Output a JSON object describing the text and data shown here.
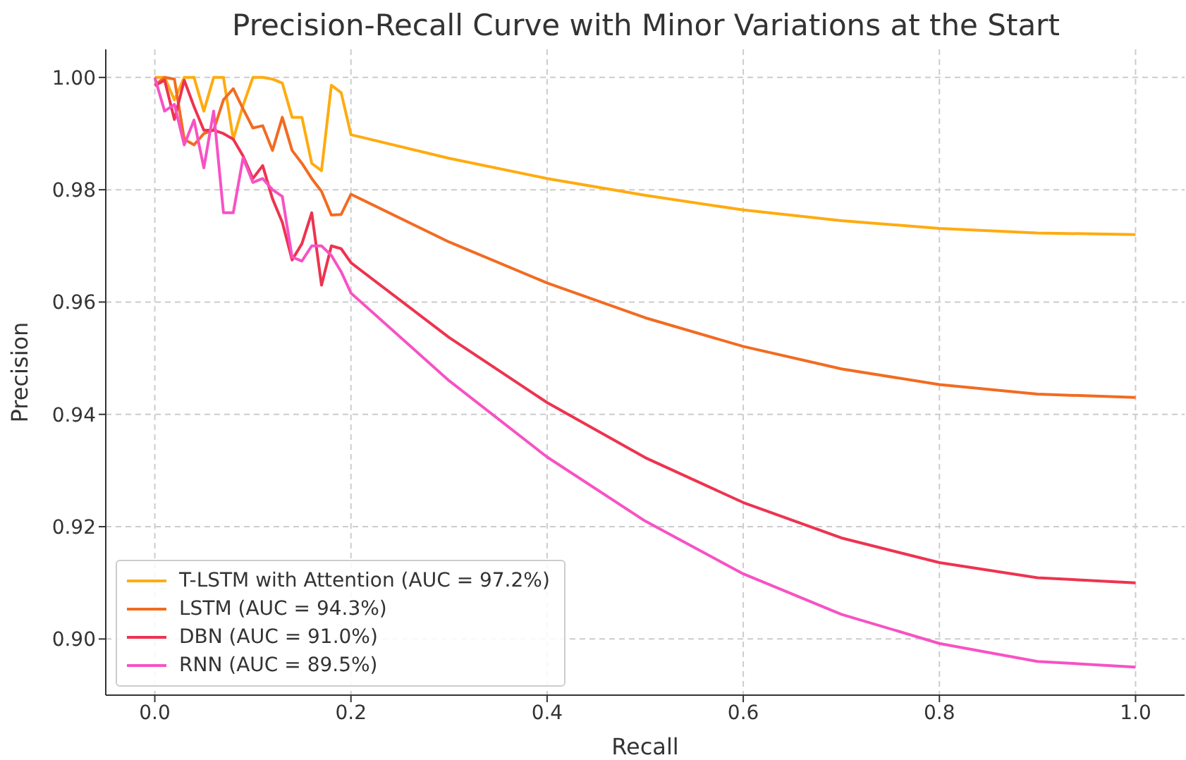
{
  "chart_data": {
    "type": "line",
    "title": "Precision-Recall Curve with Minor Variations at the Start",
    "xlabel": "Recall",
    "ylabel": "Precision",
    "x": [
      0,
      0.01,
      0.02,
      0.03,
      0.04,
      0.05,
      0.06,
      0.07,
      0.08,
      0.09,
      0.1,
      0.11,
      0.12,
      0.13,
      0.14,
      0.15,
      0.16,
      0.17,
      0.18,
      0.19,
      0.2,
      0.3,
      0.4,
      0.5,
      0.6,
      0.7,
      0.8,
      0.9,
      1.0
    ],
    "series": [
      {
        "name": "T-LSTM with Attention (AUC = 97.2%)",
        "color": "#ffab0f",
        "values": [
          1.0,
          1.0,
          0.996,
          1.0,
          1.0,
          0.994,
          1.0,
          1.0,
          0.989,
          0.995,
          1.0,
          1.0,
          0.9997,
          0.999,
          0.9929,
          0.9929,
          0.9847,
          0.9834,
          0.9986,
          0.9973,
          0.9898,
          0.9856,
          0.982,
          0.979,
          0.9764,
          0.9745,
          0.9731,
          0.9723,
          0.972
        ]
      },
      {
        "name": "LSTM (AUC = 94.3%)",
        "color": "#f26b21",
        "values": [
          0.9986,
          1.0,
          0.9997,
          0.989,
          0.988,
          0.99,
          0.9906,
          0.996,
          0.998,
          0.9944,
          0.991,
          0.9914,
          0.987,
          0.9929,
          0.987,
          0.9847,
          0.982,
          0.9797,
          0.9755,
          0.9756,
          0.9792,
          0.9707,
          0.9634,
          0.9572,
          0.9521,
          0.9481,
          0.9453,
          0.9436,
          0.943
        ]
      },
      {
        "name": "DBN (AUC = 91.0%)",
        "color": "#ee3350",
        "values": [
          0.9985,
          0.9995,
          0.9925,
          0.9995,
          0.9948,
          0.9906,
          0.9906,
          0.99,
          0.989,
          0.986,
          0.982,
          0.9843,
          0.9784,
          0.9742,
          0.9675,
          0.9704,
          0.9759,
          0.963,
          0.97,
          0.9695,
          0.967,
          0.9537,
          0.9421,
          0.9323,
          0.9243,
          0.918,
          0.9136,
          0.9109,
          0.91
        ]
      },
      {
        "name": "RNN (AUC = 89.5%)",
        "color": "#f752c4",
        "values": [
          1.0,
          0.994,
          0.9952,
          0.988,
          0.9924,
          0.9839,
          0.994,
          0.9759,
          0.9759,
          0.9857,
          0.9813,
          0.982,
          0.98,
          0.9788,
          0.968,
          0.9673,
          0.97,
          0.97,
          0.9683,
          0.9654,
          0.9616,
          0.946,
          0.9324,
          0.921,
          0.9116,
          0.9044,
          0.8992,
          0.896,
          0.895
        ]
      }
    ],
    "xlim": [
      -0.05,
      1.05
    ],
    "ylim": [
      0.89,
      1.005
    ],
    "xticks": [
      {
        "value": 0,
        "label": "0.0"
      },
      0.2,
      0.4,
      0.6,
      0.8,
      {
        "value": 1,
        "label": "1.0"
      }
    ],
    "yticks": [
      {
        "value": 0.9,
        "label": "0.90"
      },
      0.92,
      0.94,
      0.96,
      0.98,
      {
        "value": 1,
        "label": "1.00"
      }
    ],
    "grid": true,
    "legend": "bottom left",
    "line_style": "solid",
    "marker": "none"
  }
}
